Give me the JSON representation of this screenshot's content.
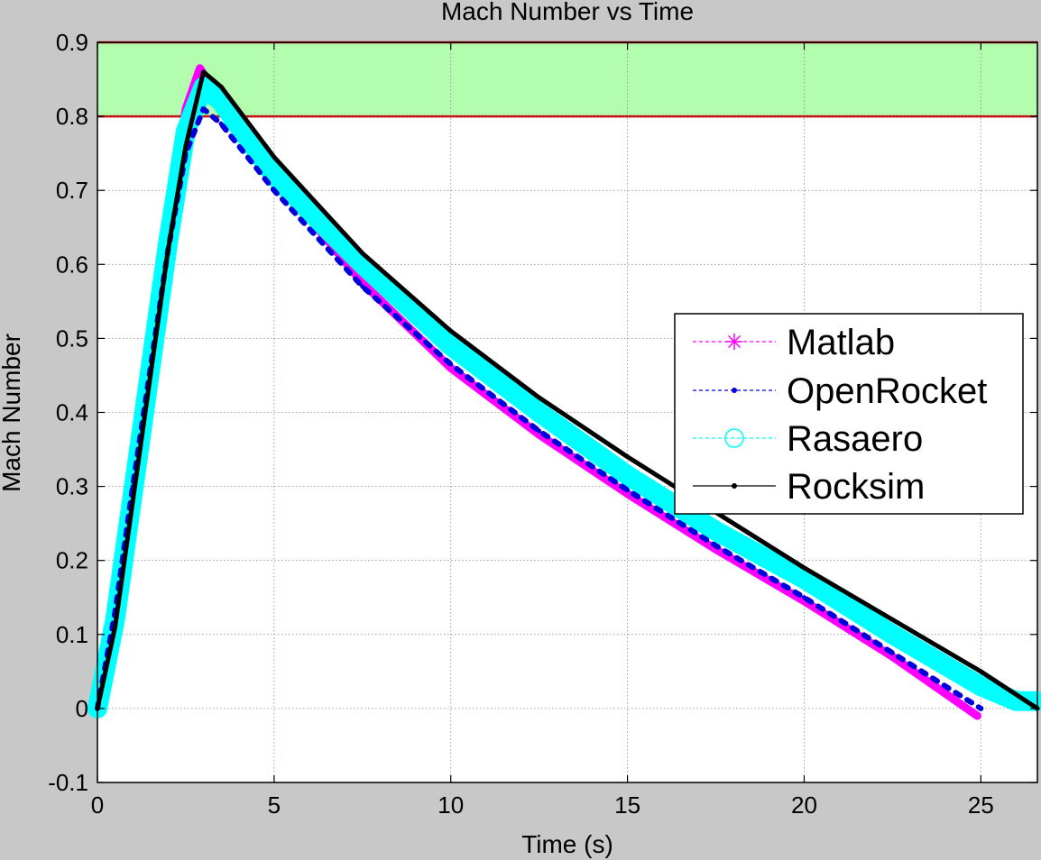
{
  "chart_data": {
    "type": "line",
    "title": "Mach Number vs Time",
    "xlabel": "Time (s)",
    "ylabel": "Mach Number",
    "xlim": [
      0,
      26.6
    ],
    "ylim": [
      -0.1,
      0.9
    ],
    "xticks": [
      0,
      5,
      10,
      15,
      20,
      25
    ],
    "yticks": [
      -0.1,
      0,
      0.1,
      0.2,
      0.3,
      0.4,
      0.5,
      0.6,
      0.7,
      0.8,
      0.9
    ],
    "xtick_labels": [
      "0",
      "5",
      "10",
      "15",
      "20",
      "25"
    ],
    "ytick_labels": [
      "-0.1",
      "0",
      "0.1",
      "0.2",
      "0.3",
      "0.4",
      "0.5",
      "0.6",
      "0.7",
      "0.8",
      "0.9"
    ],
    "grid": true,
    "legend_position": "right",
    "shaded_band": {
      "ymin": 0.8,
      "ymax": 0.9,
      "fill": "#b3fdae",
      "edge_color": "#cc0000"
    },
    "series": [
      {
        "name": "Matlab",
        "color": "#ff00ff",
        "marker": "asterisk",
        "x": [
          0,
          0.5,
          1.0,
          1.5,
          2.0,
          2.5,
          2.9,
          3.5,
          5,
          7.5,
          10,
          12.5,
          15,
          17.5,
          20,
          22.5,
          24.9
        ],
        "y": [
          0,
          0.15,
          0.32,
          0.5,
          0.67,
          0.81,
          0.865,
          0.82,
          0.72,
          0.575,
          0.46,
          0.37,
          0.29,
          0.215,
          0.145,
          0.07,
          -0.01
        ]
      },
      {
        "name": "OpenRocket",
        "color": "#0000dd",
        "marker": "dot",
        "x": [
          0,
          0.5,
          1.0,
          1.5,
          2.0,
          2.5,
          3.0,
          3.5,
          5,
          7.5,
          10,
          12.5,
          15,
          17.5,
          20,
          22.5,
          25.0
        ],
        "y": [
          0,
          0.13,
          0.3,
          0.46,
          0.62,
          0.75,
          0.81,
          0.79,
          0.7,
          0.57,
          0.465,
          0.375,
          0.295,
          0.22,
          0.15,
          0.075,
          0
        ]
      },
      {
        "name": "Rasaero",
        "color": "#00ffff",
        "marker": "circle",
        "x": [
          0,
          0.5,
          1.0,
          1.5,
          2.0,
          2.5,
          3.0,
          3.5,
          5,
          7.5,
          10,
          12.5,
          15,
          17.5,
          20,
          22.5,
          25.0,
          26.0,
          26.6
        ],
        "y": [
          0,
          0.12,
          0.29,
          0.46,
          0.63,
          0.78,
          0.84,
          0.82,
          0.72,
          0.6,
          0.49,
          0.4,
          0.315,
          0.24,
          0.175,
          0.1,
          0.03,
          0.01,
          0.01
        ]
      },
      {
        "name": "Rocksim",
        "color": "#000000",
        "marker": "dot",
        "x": [
          0,
          0.5,
          1.0,
          1.5,
          2.0,
          2.5,
          3.0,
          3.5,
          5,
          7.5,
          10,
          12.5,
          15,
          17.5,
          20,
          22.5,
          25.0,
          26.6
        ],
        "y": [
          0,
          0.11,
          0.28,
          0.45,
          0.62,
          0.76,
          0.86,
          0.84,
          0.745,
          0.615,
          0.51,
          0.42,
          0.34,
          0.265,
          0.19,
          0.12,
          0.05,
          0
        ]
      }
    ]
  }
}
